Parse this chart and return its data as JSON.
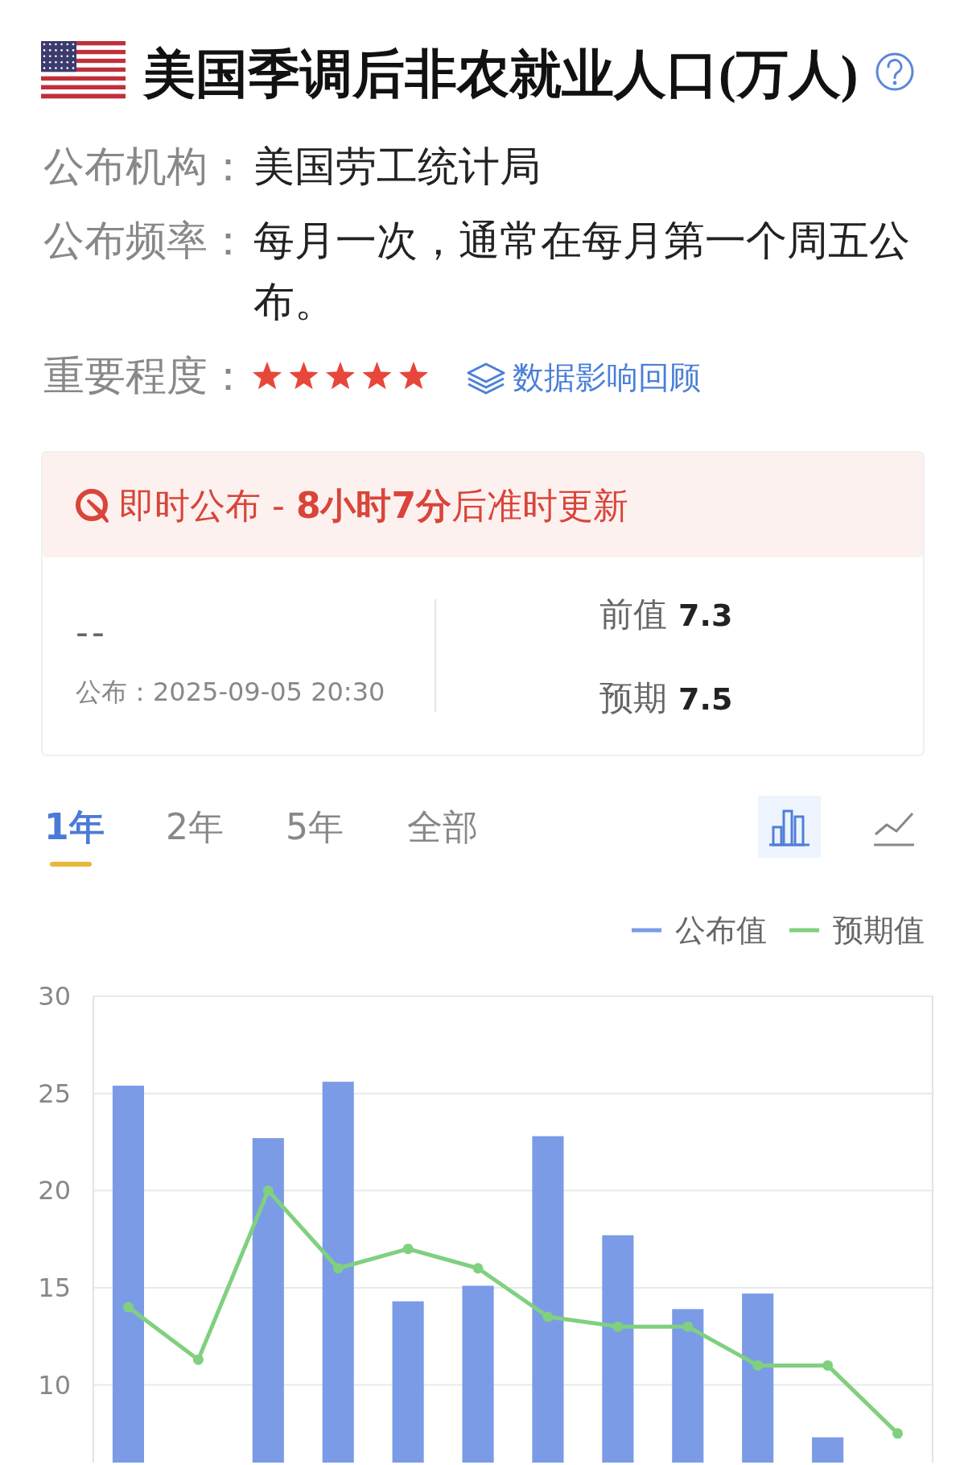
{
  "chart_data": {
    "type": "bar",
    "title": "美国季调后非农就业人口(万人)",
    "categories": [
      null,
      null,
      null,
      null,
      null,
      null,
      null,
      null,
      null,
      null,
      null,
      null
    ],
    "series": [
      {
        "name": "公布值",
        "color": "#7b9be6",
        "values": [
          25.4,
          null,
          22.7,
          25.6,
          14.3,
          15.1,
          22.8,
          17.7,
          13.9,
          14.7,
          7.3,
          null
        ]
      },
      {
        "name": "预期值",
        "type": "line",
        "color": "#80d07f",
        "values": [
          14.0,
          11.3,
          20.0,
          16.0,
          17.0,
          16.0,
          13.5,
          13.0,
          13.0,
          11.0,
          11.0,
          7.5
        ]
      }
    ],
    "ylim": [
      6,
      30
    ],
    "yticks": [
      10,
      15,
      20,
      25,
      30
    ],
    "grid": "y",
    "legend": "top right",
    "marker": "circle",
    "tick_labels": "y",
    "annotations": [
      "公布机构：",
      "美国劳工统计局",
      "公布频率：",
      "每月一次，通常在每月第一个周五公布。",
      "重要程度：",
      "数据影响回顾",
      "即时公布 -",
      "8小时7分",
      "后准时更新",
      "--",
      "公布：2025-09-05 20:30",
      "前值",
      "7.3",
      "预期",
      "7.5",
      "1年",
      "2年",
      "5年",
      "全部"
    ]
  }
}
